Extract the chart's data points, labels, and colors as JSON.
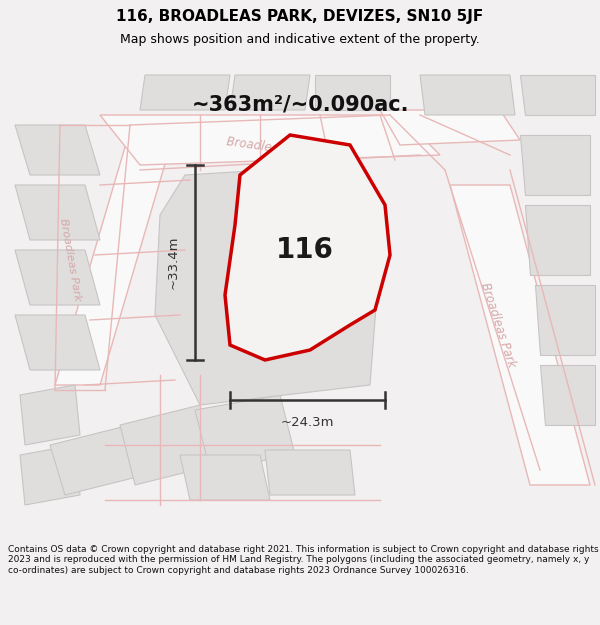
{
  "title": "116, BROADLEAS PARK, DEVIZES, SN10 5JF",
  "subtitle": "Map shows position and indicative extent of the property.",
  "area_label": "~363m²/~0.090ac.",
  "property_number": "116",
  "dim_vertical": "~33.4m",
  "dim_horizontal": "~24.3m",
  "footer": "Contains OS data © Crown copyright and database right 2021. This information is subject to Crown copyright and database rights 2023 and is reproduced with the permission of HM Land Registry. The polygons (including the associated geometry, namely x, y co-ordinates) are subject to Crown copyright and database rights 2023 Ordnance Survey 100026316.",
  "bg_color": "#f2f0f0",
  "map_bg": "#eeecec",
  "road_fill": "#faf9f9",
  "block_fill": "#e0dddd",
  "block_edge": "#c8c4c4",
  "road_line_color": "#e8b8b8",
  "property_edge": "#cc0000",
  "property_fill": "#f5f2f2",
  "dim_color": "#333333",
  "road_label_color": "#d4a8a8",
  "title_color": "#000000",
  "footer_color": "#111111",
  "footer_bg": "#ffffff",
  "figsize": [
    6.0,
    6.25
  ],
  "dpi": 100
}
